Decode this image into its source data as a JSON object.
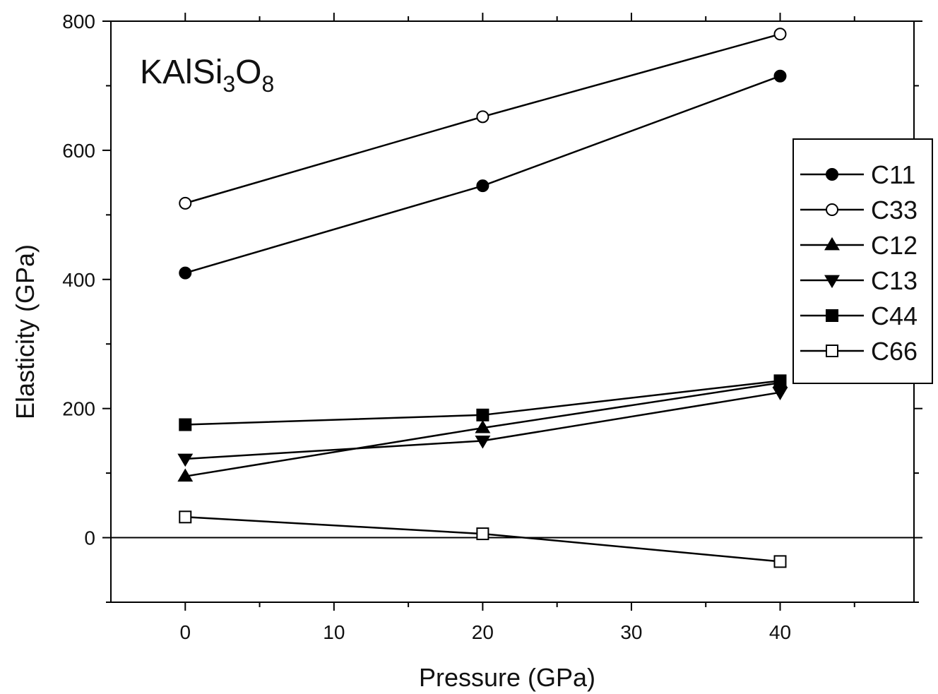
{
  "chart_data": {
    "type": "line",
    "annotation": {
      "text": "KAlSi",
      "sub1": "3",
      "mid": "O",
      "sub2": "8"
    },
    "xlabel": "Pressure (GPa)",
    "ylabel": "Elasticity (GPa)",
    "xlim": [
      -5,
      49
    ],
    "ylim": [
      -100,
      800
    ],
    "xticks": [
      0,
      10,
      20,
      30,
      40
    ],
    "yticks": [
      0,
      200,
      400,
      600,
      800
    ],
    "x": [
      0,
      20,
      40
    ],
    "zero_line": true,
    "legend_position": "right",
    "series": [
      {
        "name": "C11",
        "marker": "circle-filled",
        "values": [
          410,
          545,
          715
        ]
      },
      {
        "name": "C33",
        "marker": "circle-open",
        "values": [
          518,
          652,
          780
        ]
      },
      {
        "name": "C12",
        "marker": "triangle-up-filled",
        "values": [
          95,
          170,
          240
        ]
      },
      {
        "name": "C13",
        "marker": "triangle-down-filled",
        "values": [
          122,
          150,
          225
        ]
      },
      {
        "name": "C44",
        "marker": "square-filled",
        "values": [
          175,
          190,
          243
        ]
      },
      {
        "name": "C66",
        "marker": "square-open",
        "values": [
          32,
          6,
          -37
        ]
      }
    ],
    "colors": {
      "line": "#000000",
      "background": "#ffffff"
    }
  }
}
